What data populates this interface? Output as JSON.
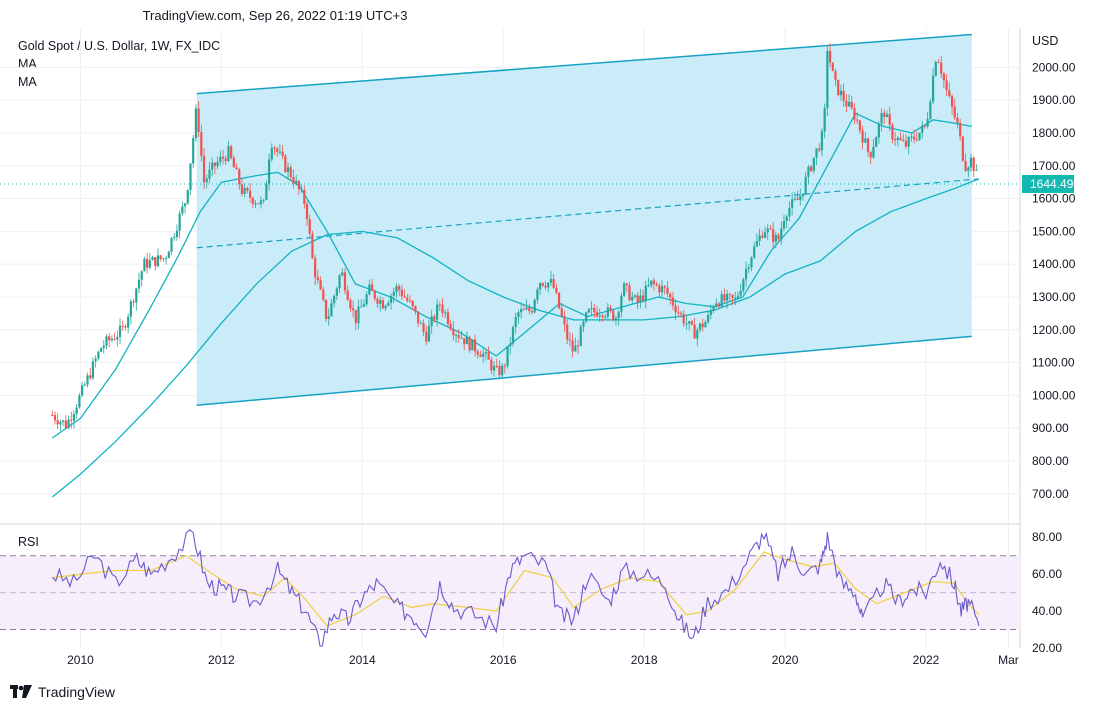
{
  "header": {
    "title": "TradingView.com, Sep 26, 2022 01:19 UTC+3"
  },
  "legend": {
    "symbol": "Gold Spot / U.S. Dollar, 1W, FX_IDC",
    "ma1": "MA",
    "ma2": "MA"
  },
  "rsi_label": "RSI",
  "currency": "USD",
  "footer": {
    "brand": "TradingView"
  },
  "colors": {
    "channel_fill": "#c9ecf8",
    "channel_line": "#17a2c4",
    "ma_line": "#12b3c2",
    "rsi_line": "#6a5acd",
    "rsi_signal": "#f0d24a",
    "last_price_bg": "#13b8b0"
  },
  "chart_data": [
    {
      "type": "candlestick",
      "title": "Gold Spot / U.S. Dollar, 1W, FX_IDC",
      "ylabel": "USD",
      "ylim": [
        620,
        2120
      ],
      "yticks": [
        "2000.00",
        "1900.00",
        "1800.00",
        "1700.00",
        "1600.00",
        "1500.00",
        "1400.00",
        "1300.00",
        "1200.00",
        "1100.00",
        "1000.00",
        "900.00",
        "800.00",
        "700.00"
      ],
      "xticks": [
        "2010",
        "2012",
        "2014",
        "2016",
        "2018",
        "2020",
        "2022",
        "Mar"
      ],
      "last_price": "1644.49",
      "price_path": [
        [
          2009.6,
          940
        ],
        [
          2009.8,
          910
        ],
        [
          2010.0,
          1000
        ],
        [
          2010.3,
          1150
        ],
        [
          2010.6,
          1200
        ],
        [
          2010.9,
          1400
        ],
        [
          2011.2,
          1420
        ],
        [
          2011.5,
          1600
        ],
        [
          2011.65,
          1880
        ],
        [
          2011.75,
          1650
        ],
        [
          2011.9,
          1700
        ],
        [
          2012.1,
          1740
        ],
        [
          2012.3,
          1620
        ],
        [
          2012.6,
          1580
        ],
        [
          2012.7,
          1780
        ],
        [
          2012.9,
          1700
        ],
        [
          2013.0,
          1670
        ],
        [
          2013.2,
          1580
        ],
        [
          2013.3,
          1400
        ],
        [
          2013.5,
          1230
        ],
        [
          2013.7,
          1380
        ],
        [
          2013.9,
          1230
        ],
        [
          2014.1,
          1320
        ],
        [
          2014.3,
          1280
        ],
        [
          2014.5,
          1330
        ],
        [
          2014.7,
          1270
        ],
        [
          2014.9,
          1180
        ],
        [
          2015.1,
          1280
        ],
        [
          2015.3,
          1200
        ],
        [
          2015.5,
          1160
        ],
        [
          2015.7,
          1130
        ],
        [
          2015.9,
          1070
        ],
        [
          2016.0,
          1080
        ],
        [
          2016.2,
          1250
        ],
        [
          2016.4,
          1260
        ],
        [
          2016.5,
          1350
        ],
        [
          2016.7,
          1340
        ],
        [
          2016.9,
          1180
        ],
        [
          2017.0,
          1130
        ],
        [
          2017.2,
          1250
        ],
        [
          2017.4,
          1260
        ],
        [
          2017.6,
          1240
        ],
        [
          2017.7,
          1330
        ],
        [
          2017.9,
          1280
        ],
        [
          2018.1,
          1340
        ],
        [
          2018.3,
          1320
        ],
        [
          2018.5,
          1250
        ],
        [
          2018.7,
          1190
        ],
        [
          2018.9,
          1230
        ],
        [
          2019.0,
          1290
        ],
        [
          2019.3,
          1290
        ],
        [
          2019.5,
          1420
        ],
        [
          2019.7,
          1510
        ],
        [
          2019.9,
          1470
        ],
        [
          2020.0,
          1560
        ],
        [
          2020.2,
          1600
        ],
        [
          2020.4,
          1720
        ],
        [
          2020.55,
          1800
        ],
        [
          2020.6,
          2060
        ],
        [
          2020.7,
          1950
        ],
        [
          2020.9,
          1880
        ],
        [
          2021.0,
          1850
        ],
        [
          2021.2,
          1730
        ],
        [
          2021.4,
          1870
        ],
        [
          2021.5,
          1800
        ],
        [
          2021.7,
          1760
        ],
        [
          2021.9,
          1800
        ],
        [
          2022.0,
          1820
        ],
        [
          2022.15,
          2050
        ],
        [
          2022.3,
          1920
        ],
        [
          2022.45,
          1820
        ],
        [
          2022.55,
          1700
        ],
        [
          2022.65,
          1720
        ],
        [
          2022.75,
          1644
        ]
      ],
      "ma_fast": [
        [
          2009.6,
          870
        ],
        [
          2010.0,
          930
        ],
        [
          2010.5,
          1080
        ],
        [
          2011.0,
          1270
        ],
        [
          2011.4,
          1430
        ],
        [
          2011.7,
          1560
        ],
        [
          2012.0,
          1650
        ],
        [
          2012.5,
          1670
        ],
        [
          2012.8,
          1680
        ],
        [
          2013.1,
          1640
        ],
        [
          2013.5,
          1500
        ],
        [
          2013.9,
          1340
        ],
        [
          2014.4,
          1300
        ],
        [
          2014.9,
          1240
        ],
        [
          2015.4,
          1190
        ],
        [
          2015.9,
          1120
        ],
        [
          2016.3,
          1190
        ],
        [
          2016.8,
          1280
        ],
        [
          2017.2,
          1240
        ],
        [
          2017.7,
          1270
        ],
        [
          2018.2,
          1300
        ],
        [
          2018.6,
          1280
        ],
        [
          2019.0,
          1270
        ],
        [
          2019.4,
          1300
        ],
        [
          2019.8,
          1440
        ],
        [
          2020.2,
          1540
        ],
        [
          2020.6,
          1700
        ],
        [
          2021.0,
          1860
        ],
        [
          2021.4,
          1820
        ],
        [
          2021.8,
          1800
        ],
        [
          2022.1,
          1840
        ],
        [
          2022.4,
          1830
        ],
        [
          2022.65,
          1820
        ]
      ],
      "ma_slow": [
        [
          2009.6,
          690
        ],
        [
          2010.0,
          760
        ],
        [
          2010.5,
          860
        ],
        [
          2011.0,
          970
        ],
        [
          2011.5,
          1090
        ],
        [
          2012.0,
          1220
        ],
        [
          2012.5,
          1340
        ],
        [
          2013.0,
          1440
        ],
        [
          2013.5,
          1490
        ],
        [
          2014.0,
          1500
        ],
        [
          2014.5,
          1480
        ],
        [
          2015.0,
          1420
        ],
        [
          2015.5,
          1350
        ],
        [
          2016.0,
          1300
        ],
        [
          2016.5,
          1260
        ],
        [
          2017.0,
          1230
        ],
        [
          2017.5,
          1230
        ],
        [
          2018.0,
          1230
        ],
        [
          2018.5,
          1240
        ],
        [
          2019.0,
          1260
        ],
        [
          2019.5,
          1300
        ],
        [
          2020.0,
          1370
        ],
        [
          2020.5,
          1410
        ],
        [
          2021.0,
          1500
        ],
        [
          2021.5,
          1560
        ],
        [
          2022.0,
          1600
        ],
        [
          2022.4,
          1630
        ],
        [
          2022.75,
          1660
        ]
      ],
      "channel": {
        "upper": [
          [
            2011.65,
            1920
          ],
          [
            2022.65,
            2100
          ]
        ],
        "lower": [
          [
            2011.65,
            970
          ],
          [
            2022.65,
            1180
          ]
        ],
        "midline": [
          [
            2011.65,
            1450
          ],
          [
            2022.75,
            1660
          ]
        ]
      }
    },
    {
      "type": "line",
      "title": "RSI",
      "ylim": [
        20,
        85
      ],
      "yticks": [
        "80.00",
        "60.00",
        "40.00",
        "20.00"
      ],
      "bands": [
        30,
        70
      ],
      "series": [
        {
          "name": "RSI",
          "values": [
            [
              2009.6,
              60
            ],
            [
              2009.9,
              55
            ],
            [
              2010.2,
              70
            ],
            [
              2010.5,
              55
            ],
            [
              2010.8,
              68
            ],
            [
              2011.0,
              60
            ],
            [
              2011.3,
              70
            ],
            [
              2011.6,
              82
            ],
            [
              2011.8,
              55
            ],
            [
              2012.0,
              52
            ],
            [
              2012.2,
              48
            ],
            [
              2012.5,
              45
            ],
            [
              2012.8,
              62
            ],
            [
              2013.0,
              50
            ],
            [
              2013.2,
              40
            ],
            [
              2013.4,
              22
            ],
            [
              2013.6,
              40
            ],
            [
              2013.8,
              35
            ],
            [
              2014.0,
              48
            ],
            [
              2014.2,
              55
            ],
            [
              2014.5,
              42
            ],
            [
              2014.7,
              38
            ],
            [
              2014.9,
              30
            ],
            [
              2015.1,
              55
            ],
            [
              2015.3,
              42
            ],
            [
              2015.6,
              38
            ],
            [
              2015.9,
              32
            ],
            [
              2016.1,
              62
            ],
            [
              2016.3,
              70
            ],
            [
              2016.6,
              65
            ],
            [
              2016.8,
              38
            ],
            [
              2017.0,
              35
            ],
            [
              2017.2,
              60
            ],
            [
              2017.5,
              45
            ],
            [
              2017.7,
              62
            ],
            [
              2018.0,
              60
            ],
            [
              2018.3,
              55
            ],
            [
              2018.5,
              35
            ],
            [
              2018.7,
              25
            ],
            [
              2018.9,
              45
            ],
            [
              2019.2,
              52
            ],
            [
              2019.5,
              70
            ],
            [
              2019.7,
              82
            ],
            [
              2019.9,
              60
            ],
            [
              2020.1,
              72
            ],
            [
              2020.3,
              60
            ],
            [
              2020.5,
              65
            ],
            [
              2020.6,
              80
            ],
            [
              2020.8,
              55
            ],
            [
              2021.0,
              50
            ],
            [
              2021.1,
              35
            ],
            [
              2021.4,
              55
            ],
            [
              2021.6,
              45
            ],
            [
              2021.8,
              52
            ],
            [
              2022.0,
              50
            ],
            [
              2022.2,
              68
            ],
            [
              2022.4,
              55
            ],
            [
              2022.5,
              40
            ],
            [
              2022.6,
              45
            ],
            [
              2022.75,
              32
            ]
          ]
        },
        {
          "name": "RSI MA",
          "values": [
            [
              2009.6,
              58
            ],
            [
              2010.0,
              60
            ],
            [
              2010.5,
              62
            ],
            [
              2011.0,
              62
            ],
            [
              2011.5,
              70
            ],
            [
              2011.8,
              62
            ],
            [
              2012.2,
              52
            ],
            [
              2012.6,
              48
            ],
            [
              2012.9,
              58
            ],
            [
              2013.2,
              46
            ],
            [
              2013.5,
              32
            ],
            [
              2013.9,
              38
            ],
            [
              2014.3,
              48
            ],
            [
              2014.7,
              42
            ],
            [
              2015.0,
              44
            ],
            [
              2015.5,
              42
            ],
            [
              2015.9,
              40
            ],
            [
              2016.3,
              62
            ],
            [
              2016.7,
              58
            ],
            [
              2017.0,
              42
            ],
            [
              2017.4,
              52
            ],
            [
              2017.8,
              58
            ],
            [
              2018.2,
              56
            ],
            [
              2018.6,
              38
            ],
            [
              2018.9,
              40
            ],
            [
              2019.3,
              52
            ],
            [
              2019.7,
              72
            ],
            [
              2020.0,
              68
            ],
            [
              2020.4,
              64
            ],
            [
              2020.7,
              66
            ],
            [
              2021.0,
              52
            ],
            [
              2021.3,
              44
            ],
            [
              2021.7,
              50
            ],
            [
              2022.1,
              56
            ],
            [
              2022.4,
              55
            ],
            [
              2022.6,
              44
            ],
            [
              2022.75,
              38
            ]
          ]
        }
      ]
    }
  ]
}
